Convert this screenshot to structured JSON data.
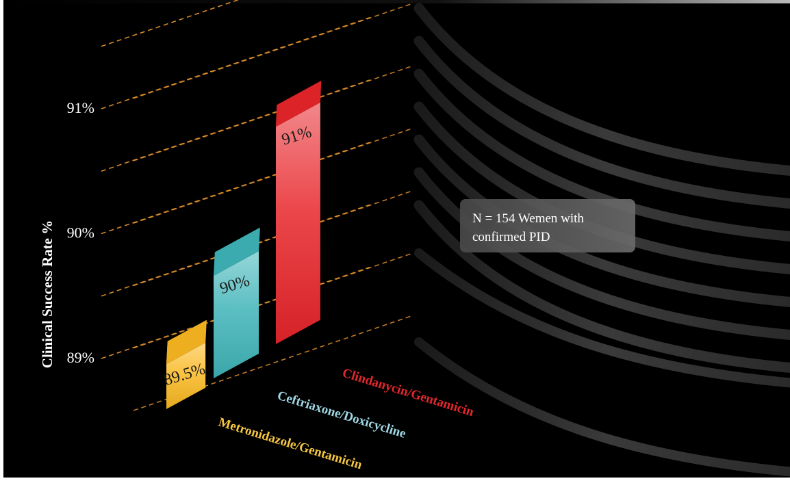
{
  "chart_data": {
    "type": "bar",
    "title": "",
    "ylabel": "Clinical Success Rate %",
    "ylim": [
      88.75,
      91.35
    ],
    "yticks": [
      {
        "value": 89,
        "label": "89%"
      },
      {
        "value": 90,
        "label": "90%"
      },
      {
        "value": 91,
        "label": "91%"
      }
    ],
    "categories": [
      "Metronidazole/Gentamicin",
      "Ceftriaxone/Doxicycline",
      "Clindanycin/Gentamicin"
    ],
    "values": [
      89.5,
      90,
      91
    ],
    "value_labels": [
      "89.5%",
      "90%",
      "91%"
    ],
    "colors": [
      "#f9b822",
      "#3fb4b8",
      "#e8252a"
    ],
    "category_label_colors": [
      "#f5c542",
      "#9fd6e3",
      "#e2262d"
    ],
    "grid": true,
    "grid_color": "#d68a2a",
    "background": "#000000"
  },
  "annotation": {
    "line1": "N = 154 Wemen with",
    "line2": "confirmed PID"
  }
}
